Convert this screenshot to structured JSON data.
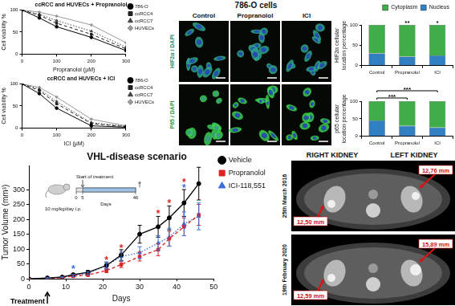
{
  "chart_data": [
    {
      "type": "line",
      "title": "ccRCC and HUVECs + Propranolol",
      "x_label": "Propranolol (µM)",
      "y_label": "Cell viability %",
      "x": [
        0,
        50,
        100,
        200,
        300
      ],
      "series": [
        {
          "name": "786-O",
          "color": "#000000",
          "marker": "circle",
          "line_style": "solid",
          "values": [
            100,
            82,
            62,
            38,
            8
          ]
        },
        {
          "name": "ccRCC4",
          "color": "#222222",
          "marker": "square",
          "line_style": "dashed",
          "values": [
            100,
            88,
            70,
            45,
            12
          ]
        },
        {
          "name": "ccRCC7",
          "color": "#444444",
          "marker": "triangle",
          "line_style": "dotted",
          "values": [
            100,
            90,
            76,
            52,
            16
          ]
        },
        {
          "name": "HUVECs",
          "color": "#9a9a9a",
          "marker": "diamond",
          "line_style": "solid",
          "values": [
            100,
            95,
            86,
            66,
            26
          ]
        }
      ],
      "xlim": [
        0,
        300
      ],
      "xticks": [
        0,
        100,
        200,
        300
      ],
      "ylim": [
        0,
        100
      ],
      "yticks": [
        0,
        50,
        100
      ],
      "grid": false,
      "legend": "right"
    },
    {
      "type": "line",
      "title": "ccRCC and HUVECs + ICI",
      "x_label": "ICI (µM)",
      "y_label": "Cell viability %",
      "x": [
        0,
        50,
        100,
        200,
        300
      ],
      "series": [
        {
          "name": "786-O",
          "color": "#000000",
          "marker": "circle",
          "line_style": "solid",
          "values": [
            100,
            78,
            45,
            5,
            2
          ]
        },
        {
          "name": "ccRCC4",
          "color": "#222222",
          "marker": "square",
          "line_style": "dashed",
          "values": [
            100,
            85,
            55,
            10,
            3
          ]
        },
        {
          "name": "ccRCC7",
          "color": "#444444",
          "marker": "triangle",
          "line_style": "dotted",
          "values": [
            100,
            88,
            60,
            12,
            4
          ]
        },
        {
          "name": "HUVECs",
          "color": "#9a9a9a",
          "marker": "diamond",
          "line_style": "solid",
          "values": [
            100,
            92,
            70,
            20,
            5
          ]
        }
      ],
      "xlim": [
        0,
        300
      ],
      "xticks": [
        0,
        100,
        200,
        300
      ],
      "ylim": [
        0,
        100
      ],
      "yticks": [
        0,
        50,
        100
      ],
      "grid": false,
      "legend": "right"
    },
    {
      "type": "bar",
      "y_label": [
        "HIF2α cellular",
        "location percentage"
      ],
      "categories": [
        "Control",
        "Propranolol",
        "ICI"
      ],
      "series": [
        {
          "name": "Nucleus",
          "color": "#2f7fc1",
          "values": [
            30,
            22,
            25
          ]
        },
        {
          "name": "Cytoplasm",
          "color": "#3fae49",
          "values": [
            70,
            78,
            75
          ]
        }
      ],
      "stacked": true,
      "ylim": [
        0,
        100
      ],
      "yticks": [
        0,
        50,
        100
      ],
      "grid": false,
      "legend": "top",
      "annotations": [
        {
          "category": "Propranolol",
          "text": "**"
        },
        {
          "category": "ICI",
          "text": "*"
        }
      ]
    },
    {
      "type": "bar",
      "y_label": [
        "p65 cellular",
        "location percentage"
      ],
      "categories": [
        "Control",
        "Propranolol",
        "ICI"
      ],
      "series": [
        {
          "name": "Nucleus",
          "color": "#2f7fc1",
          "values": [
            45,
            30,
            25
          ]
        },
        {
          "name": "Cytoplasm",
          "color": "#3fae49",
          "values": [
            55,
            70,
            75
          ]
        }
      ],
      "stacked": true,
      "ylim": [
        0,
        100
      ],
      "yticks": [
        0,
        50,
        100
      ],
      "grid": false,
      "annotations": [
        {
          "from": "Control",
          "to": "Propranolol",
          "text": "***"
        },
        {
          "from": "Control",
          "to": "ICI",
          "text": "***"
        }
      ]
    },
    {
      "type": "line",
      "title": "VHL-disease scenario",
      "x_label": "Days",
      "y_label": "Tumor Volume (mm³)",
      "x": [
        0,
        5,
        9,
        12,
        16,
        21,
        25,
        30,
        35,
        38,
        42,
        46
      ],
      "series": [
        {
          "name": "Vehicle",
          "color": "#000000",
          "marker": "circle",
          "line_style": "solid",
          "values": [
            0,
            3,
            6,
            14,
            22,
            45,
            80,
            150,
            175,
            205,
            255,
            320
          ],
          "errors": [
            0,
            1,
            2,
            4,
            6,
            10,
            18,
            30,
            35,
            40,
            45,
            55
          ]
        },
        {
          "name": "Propranolol",
          "color": "#e02020",
          "marker": "square",
          "line_style": "dashed",
          "values": [
            0,
            2,
            4,
            9,
            13,
            28,
            48,
            75,
            98,
            135,
            175,
            215
          ],
          "errors": [
            0,
            1,
            1,
            3,
            4,
            7,
            10,
            15,
            20,
            25,
            30,
            35
          ]
        },
        {
          "name": "ICI-118,551",
          "color": "#3b6fd6",
          "marker": "triangle",
          "line_style": "dotted",
          "values": [
            0,
            3,
            5,
            11,
            18,
            45,
            75,
            88,
            120,
            140,
            185,
            210
          ],
          "errors": [
            0,
            1,
            2,
            4,
            5,
            12,
            15,
            20,
            25,
            30,
            40,
            45
          ]
        }
      ],
      "xlim": [
        0,
        50
      ],
      "xticks": [
        0,
        10,
        20,
        30,
        40,
        50
      ],
      "ylim": [
        0,
        380
      ],
      "yticks": [
        0,
        50,
        100,
        150,
        200,
        250,
        300
      ],
      "grid": false,
      "legend": "right",
      "annotations": [
        {
          "x": 12,
          "y": 32,
          "text": "*",
          "series": "ICI-118,551"
        },
        {
          "x": 21,
          "y": 62,
          "text": "*",
          "series": "Propranolol"
        },
        {
          "x": 25,
          "y": 104,
          "text": "*",
          "series": "Propranolol"
        },
        {
          "x": 35,
          "y": 218,
          "text": "*",
          "series": "Propranolol"
        },
        {
          "x": 38,
          "y": 254,
          "text": "*",
          "series": "Propranolol"
        },
        {
          "x": 42,
          "y": 305,
          "text": "*",
          "series": "ICI-118,551"
        },
        {
          "x": 42,
          "y": 325,
          "text": "*",
          "series": "Propranolol"
        }
      ],
      "treatment": {
        "text": "Treatment",
        "x": 5
      },
      "inset": {
        "start_label": "Start of treatment",
        "days_label": "Days",
        "ticks": [
          0,
          5,
          46
        ],
        "end_mark": "†",
        "dose": "10 mg/kg/day i.p."
      }
    }
  ],
  "microscopy": {
    "title": "786-O cells",
    "columns": [
      "Control",
      "Propranolol",
      "ICI"
    ],
    "rows": [
      "HIF2α / DAPI",
      "P65 / DAPI"
    ]
  },
  "mri": {
    "columns": [
      "RIGHT KIDNEY",
      "LEFT KIDNEY"
    ],
    "rows": [
      {
        "date": "25th March 2016",
        "measures": [
          "12,50 mm",
          "12,76 mm"
        ]
      },
      {
        "date": "19th February 2020",
        "measures": [
          "12,59 mm",
          "15,89 mm"
        ]
      }
    ]
  }
}
